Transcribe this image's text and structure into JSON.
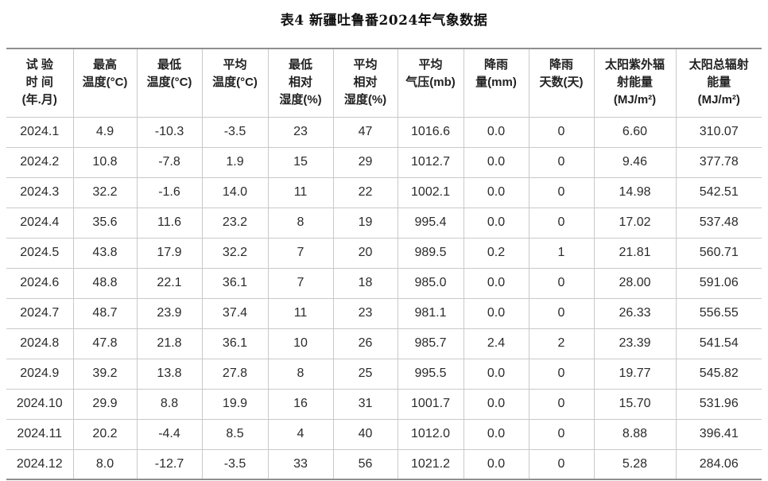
{
  "page": {
    "title": "表4 新疆吐鲁番2024年气象数据"
  },
  "colors": {
    "background": "#ffffff",
    "text": "#2b2b2b",
    "rule_outer": "#8f8f8f",
    "rule_inner": "#c9c9c9"
  },
  "table": {
    "columns": [
      {
        "label": "试 验\n时 间\n(年.月)"
      },
      {
        "label": "最高\n温度(°C)"
      },
      {
        "label": "最低\n温度(°C)"
      },
      {
        "label": "平均\n温度(°C)"
      },
      {
        "label": "最低\n相对\n湿度(%)"
      },
      {
        "label": "平均\n相对\n湿度(%)"
      },
      {
        "label": "平均\n气压(mb)"
      },
      {
        "label": "降雨\n量(mm)"
      },
      {
        "label": "降雨\n天数(天)"
      },
      {
        "label": "太阳紫外辐\n射能量\n(MJ/m²)"
      },
      {
        "label": "太阳总辐射\n能量\n(MJ/m²)"
      }
    ],
    "rows": [
      [
        "2024.1",
        "4.9",
        "-10.3",
        "-3.5",
        "23",
        "47",
        "1016.6",
        "0.0",
        "0",
        "6.60",
        "310.07"
      ],
      [
        "2024.2",
        "10.8",
        "-7.8",
        "1.9",
        "15",
        "29",
        "1012.7",
        "0.0",
        "0",
        "9.46",
        "377.78"
      ],
      [
        "2024.3",
        "32.2",
        "-1.6",
        "14.0",
        "11",
        "22",
        "1002.1",
        "0.0",
        "0",
        "14.98",
        "542.51"
      ],
      [
        "2024.4",
        "35.6",
        "11.6",
        "23.2",
        "8",
        "19",
        "995.4",
        "0.0",
        "0",
        "17.02",
        "537.48"
      ],
      [
        "2024.5",
        "43.8",
        "17.9",
        "32.2",
        "7",
        "20",
        "989.5",
        "0.2",
        "1",
        "21.81",
        "560.71"
      ],
      [
        "2024.6",
        "48.8",
        "22.1",
        "36.1",
        "7",
        "18",
        "985.0",
        "0.0",
        "0",
        "28.00",
        "591.06"
      ],
      [
        "2024.7",
        "48.7",
        "23.9",
        "37.4",
        "11",
        "23",
        "981.1",
        "0.0",
        "0",
        "26.33",
        "556.55"
      ],
      [
        "2024.8",
        "47.8",
        "21.8",
        "36.1",
        "10",
        "26",
        "985.7",
        "2.4",
        "2",
        "23.39",
        "541.54"
      ],
      [
        "2024.9",
        "39.2",
        "13.8",
        "27.8",
        "8",
        "25",
        "995.5",
        "0.0",
        "0",
        "19.77",
        "545.82"
      ],
      [
        "2024.10",
        "29.9",
        "8.8",
        "19.9",
        "16",
        "31",
        "1001.7",
        "0.0",
        "0",
        "15.70",
        "531.96"
      ],
      [
        "2024.11",
        "20.2",
        "-4.4",
        "8.5",
        "4",
        "40",
        "1012.0",
        "0.0",
        "0",
        "8.88",
        "396.41"
      ],
      [
        "2024.12",
        "8.0",
        "-12.7",
        "-3.5",
        "33",
        "56",
        "1021.2",
        "0.0",
        "0",
        "5.28",
        "284.06"
      ]
    ]
  },
  "chart_data": {
    "type": "table",
    "title": "表4 新疆吐鲁番2024年气象数据",
    "columns": [
      "试验时间(年.月)",
      "最高温度(°C)",
      "最低温度(°C)",
      "平均温度(°C)",
      "最低相对湿度(%)",
      "平均相对湿度(%)",
      "平均气压(mb)",
      "降雨量(mm)",
      "降雨天数(天)",
      "太阳紫外辐射能量(MJ/m²)",
      "太阳总辐射能量(MJ/m²)"
    ],
    "rows": [
      [
        "2024.1",
        4.9,
        -10.3,
        -3.5,
        23,
        47,
        1016.6,
        0.0,
        0,
        6.6,
        310.07
      ],
      [
        "2024.2",
        10.8,
        -7.8,
        1.9,
        15,
        29,
        1012.7,
        0.0,
        0,
        9.46,
        377.78
      ],
      [
        "2024.3",
        32.2,
        -1.6,
        14.0,
        11,
        22,
        1002.1,
        0.0,
        0,
        14.98,
        542.51
      ],
      [
        "2024.4",
        35.6,
        11.6,
        23.2,
        8,
        19,
        995.4,
        0.0,
        0,
        17.02,
        537.48
      ],
      [
        "2024.5",
        43.8,
        17.9,
        32.2,
        7,
        20,
        989.5,
        0.2,
        1,
        21.81,
        560.71
      ],
      [
        "2024.6",
        48.8,
        22.1,
        36.1,
        7,
        18,
        985.0,
        0.0,
        0,
        28.0,
        591.06
      ],
      [
        "2024.7",
        48.7,
        23.9,
        37.4,
        11,
        23,
        981.1,
        0.0,
        0,
        26.33,
        556.55
      ],
      [
        "2024.8",
        47.8,
        21.8,
        36.1,
        10,
        26,
        985.7,
        2.4,
        2,
        23.39,
        541.54
      ],
      [
        "2024.9",
        39.2,
        13.8,
        27.8,
        8,
        25,
        995.5,
        0.0,
        0,
        19.77,
        545.82
      ],
      [
        "2024.10",
        29.9,
        8.8,
        19.9,
        16,
        31,
        1001.7,
        0.0,
        0,
        15.7,
        531.96
      ],
      [
        "2024.11",
        20.2,
        -4.4,
        8.5,
        4,
        40,
        1012.0,
        0.0,
        0,
        8.88,
        396.41
      ],
      [
        "2024.12",
        8.0,
        -12.7,
        -3.5,
        33,
        56,
        1021.2,
        0.0,
        0,
        5.28,
        284.06
      ]
    ]
  }
}
